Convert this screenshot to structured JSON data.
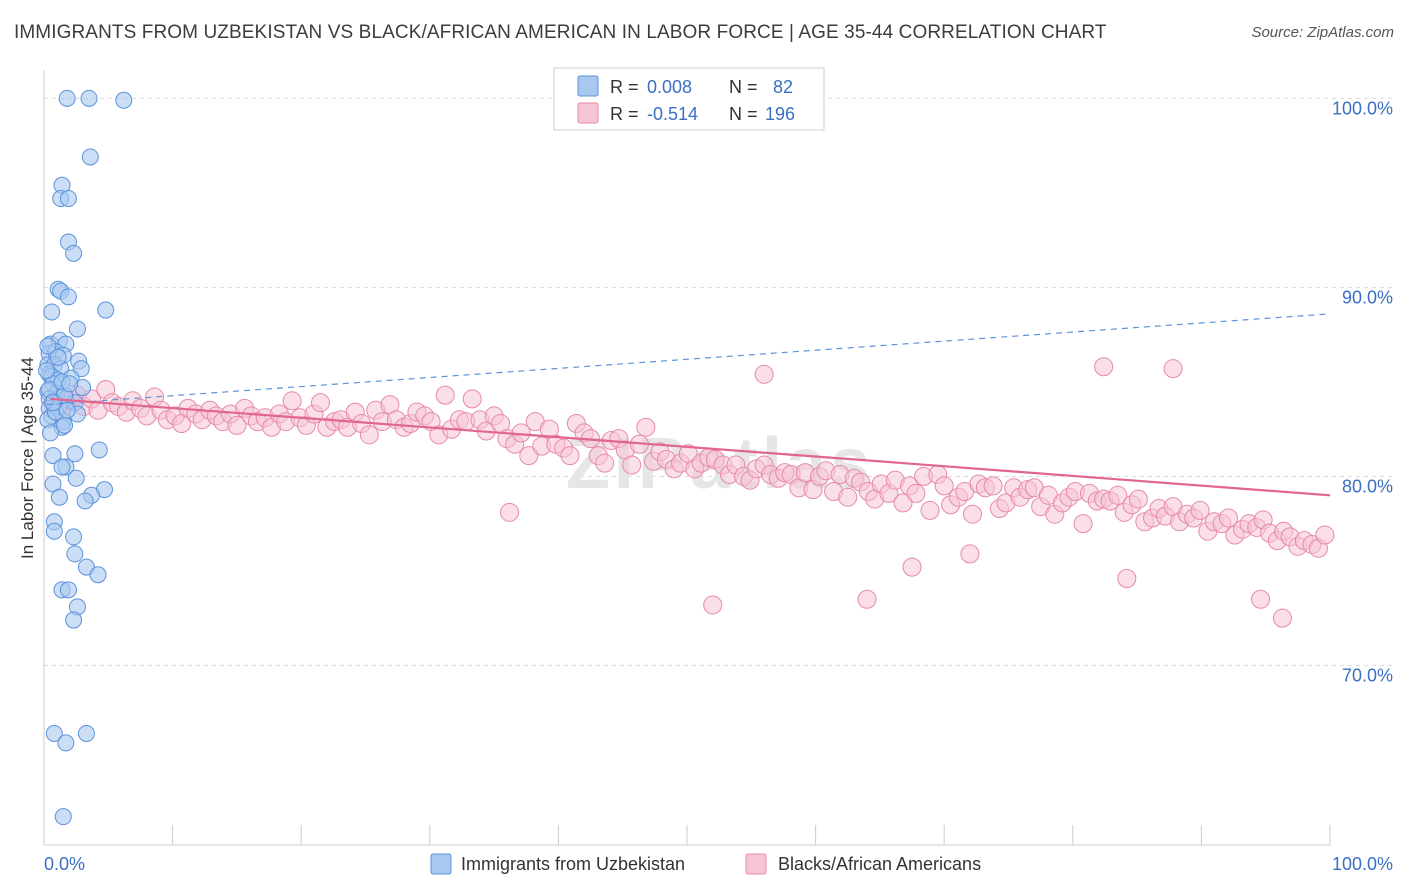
{
  "header": {
    "title": "IMMIGRANTS FROM UZBEKISTAN VS BLACK/AFRICAN AMERICAN IN LABOR FORCE | AGE 35-44 CORRELATION CHART",
    "source": "Source: ZipAtlas.com"
  },
  "colors": {
    "blue_fill": "#a9c8f0",
    "blue_stroke": "#5b93dc",
    "blue_line": "#5b93dc",
    "pink_fill": "#f6c5d4",
    "pink_stroke": "#e78aa8",
    "pink_line": "#e0668f",
    "value_text": "#3a6fc4",
    "grid": "#d9d9d9"
  },
  "watermark": "ZIPatlas",
  "legend_box": {
    "rows": [
      {
        "r_label": "R = ",
        "r_value": "0.008",
        "n_label": "N = ",
        "n_value": "82"
      },
      {
        "r_label": "R = ",
        "r_value": "-0.514",
        "n_label": "N = ",
        "n_value": "196"
      }
    ]
  },
  "bottom_legend": {
    "series1": "Immigrants from Uzbekistan",
    "series2": "Blacks/African Americans"
  },
  "chart_data": {
    "type": "scatter",
    "title": "IMMIGRANTS FROM UZBEKISTAN VS BLACK/AFRICAN AMERICAN IN LABOR FORCE | AGE 35-44 CORRELATION CHART",
    "ylabel": "In Labor Force | Age 35-44",
    "xlabel": "",
    "xlim": [
      0,
      100
    ],
    "ylim": [
      60.5,
      101.5
    ],
    "x_tick_labels": [
      "0.0%",
      "100.0%"
    ],
    "y_ticks": [
      70,
      80,
      90,
      100
    ],
    "y_tick_labels": [
      "70.0%",
      "80.0%",
      "90.0%",
      "100.0%"
    ],
    "grid": true,
    "legend_position": "top-center",
    "series": [
      {
        "name": "Immigrants from Uzbekistan",
        "R": 0.008,
        "N": 82,
        "trend": {
          "x": [
            0.2,
            100
          ],
          "y": [
            83.8,
            88.6
          ],
          "style": "dashed"
        },
        "points": [
          [
            1.8,
            100
          ],
          [
            3.5,
            100
          ],
          [
            6.2,
            99.9
          ],
          [
            3.6,
            96.9
          ],
          [
            1.4,
            95.4
          ],
          [
            1.3,
            94.7
          ],
          [
            1.9,
            94.7
          ],
          [
            1.9,
            92.4
          ],
          [
            2.3,
            91.8
          ],
          [
            1.1,
            89.9
          ],
          [
            1.3,
            89.8
          ],
          [
            1.9,
            89.5
          ],
          [
            0.6,
            88.7
          ],
          [
            4.8,
            88.8
          ],
          [
            2.6,
            87.8
          ],
          [
            0.5,
            87.0
          ],
          [
            1.2,
            87.2
          ],
          [
            1.7,
            87.0
          ],
          [
            0.4,
            86.5
          ],
          [
            0.9,
            86.6
          ],
          [
            1.5,
            86.4
          ],
          [
            2.7,
            86.1
          ],
          [
            0.3,
            85.9
          ],
          [
            0.8,
            85.9
          ],
          [
            1.3,
            85.7
          ],
          [
            2.9,
            85.7
          ],
          [
            0.4,
            85.4
          ],
          [
            0.6,
            85.3
          ],
          [
            1.1,
            85.1
          ],
          [
            0.7,
            84.9
          ],
          [
            0.3,
            84.5
          ],
          [
            1.0,
            84.4
          ],
          [
            0.4,
            84.1
          ],
          [
            0.8,
            84.0
          ],
          [
            1.7,
            84.1
          ],
          [
            2.4,
            83.9
          ],
          [
            0.4,
            83.6
          ],
          [
            1.2,
            83.7
          ],
          [
            0.6,
            83.2
          ],
          [
            0.3,
            83.0
          ],
          [
            2.6,
            83.3
          ],
          [
            1.5,
            82.9
          ],
          [
            1.4,
            82.6
          ],
          [
            1.6,
            82.7
          ],
          [
            4.3,
            81.4
          ],
          [
            0.7,
            81.1
          ],
          [
            2.4,
            81.2
          ],
          [
            1.7,
            80.5
          ],
          [
            1.4,
            80.5
          ],
          [
            2.5,
            79.9
          ],
          [
            0.7,
            79.6
          ],
          [
            4.7,
            79.3
          ],
          [
            3.7,
            79.0
          ],
          [
            1.2,
            78.9
          ],
          [
            3.2,
            78.7
          ],
          [
            0.8,
            77.6
          ],
          [
            0.8,
            77.1
          ],
          [
            2.3,
            76.8
          ],
          [
            2.4,
            75.9
          ],
          [
            3.3,
            75.2
          ],
          [
            4.2,
            74.8
          ],
          [
            1.4,
            74.0
          ],
          [
            1.9,
            74.0
          ],
          [
            2.6,
            73.1
          ],
          [
            2.3,
            72.4
          ],
          [
            0.8,
            66.4
          ],
          [
            3.3,
            66.4
          ],
          [
            1.7,
            65.9
          ],
          [
            1.5,
            62.0
          ],
          [
            0.4,
            84.6
          ],
          [
            0.9,
            83.4
          ],
          [
            1.6,
            84.3
          ],
          [
            0.2,
            85.6
          ],
          [
            2.1,
            85.2
          ],
          [
            1.1,
            86.3
          ],
          [
            0.5,
            82.3
          ],
          [
            3.0,
            84.7
          ],
          [
            1.8,
            83.5
          ],
          [
            0.3,
            86.9
          ],
          [
            1.4,
            85.0
          ],
          [
            0.7,
            83.9
          ],
          [
            2.0,
            84.9
          ]
        ]
      },
      {
        "name": "Blacks/African Americans",
        "R": -0.514,
        "N": 196,
        "trend": {
          "x": [
            0.5,
            100
          ],
          "y": [
            84.1,
            79.0
          ],
          "style": "solid"
        },
        "points": [
          [
            0.7,
            83.9
          ],
          [
            1.2,
            84.2
          ],
          [
            1.6,
            83.8
          ],
          [
            2.1,
            84.0
          ],
          [
            2.6,
            84.3
          ],
          [
            3.1,
            83.7
          ],
          [
            3.7,
            84.1
          ],
          [
            4.2,
            83.5
          ],
          [
            4.8,
            84.6
          ],
          [
            5.3,
            83.9
          ],
          [
            5.8,
            83.7
          ],
          [
            6.4,
            83.4
          ],
          [
            6.9,
            84.0
          ],
          [
            7.5,
            83.6
          ],
          [
            8.0,
            83.2
          ],
          [
            8.6,
            84.2
          ],
          [
            9.1,
            83.5
          ],
          [
            9.6,
            83.0
          ],
          [
            10.2,
            83.2
          ],
          [
            10.7,
            82.8
          ],
          [
            11.2,
            83.6
          ],
          [
            11.8,
            83.3
          ],
          [
            12.3,
            83.0
          ],
          [
            12.9,
            83.5
          ],
          [
            13.4,
            83.2
          ],
          [
            13.9,
            82.9
          ],
          [
            14.5,
            83.3
          ],
          [
            15.0,
            82.7
          ],
          [
            15.6,
            83.6
          ],
          [
            16.1,
            83.2
          ],
          [
            16.6,
            82.9
          ],
          [
            17.2,
            83.1
          ],
          [
            17.7,
            82.6
          ],
          [
            18.3,
            83.3
          ],
          [
            18.8,
            82.9
          ],
          [
            19.3,
            84.0
          ],
          [
            19.9,
            83.1
          ],
          [
            20.4,
            82.7
          ],
          [
            21.0,
            83.3
          ],
          [
            21.5,
            83.9
          ],
          [
            22.0,
            82.6
          ],
          [
            22.6,
            82.9
          ],
          [
            23.1,
            83.0
          ],
          [
            23.6,
            82.6
          ],
          [
            24.2,
            83.4
          ],
          [
            24.7,
            82.8
          ],
          [
            25.3,
            82.2
          ],
          [
            25.8,
            83.5
          ],
          [
            26.3,
            82.9
          ],
          [
            26.9,
            83.8
          ],
          [
            27.4,
            83.0
          ],
          [
            28.0,
            82.6
          ],
          [
            28.5,
            82.8
          ],
          [
            29.0,
            83.4
          ],
          [
            29.6,
            83.2
          ],
          [
            30.1,
            82.9
          ],
          [
            30.7,
            82.2
          ],
          [
            31.2,
            84.3
          ],
          [
            31.7,
            82.5
          ],
          [
            32.3,
            83.0
          ],
          [
            32.8,
            82.9
          ],
          [
            33.3,
            84.1
          ],
          [
            33.9,
            83.0
          ],
          [
            34.4,
            82.4
          ],
          [
            35.0,
            83.2
          ],
          [
            35.5,
            82.8
          ],
          [
            36.0,
            82.0
          ],
          [
            36.6,
            81.7
          ],
          [
            37.1,
            82.3
          ],
          [
            37.7,
            81.1
          ],
          [
            38.2,
            82.9
          ],
          [
            38.7,
            81.6
          ],
          [
            39.3,
            82.5
          ],
          [
            39.8,
            81.7
          ],
          [
            40.4,
            81.5
          ],
          [
            40.9,
            81.1
          ],
          [
            41.4,
            82.8
          ],
          [
            42.0,
            82.3
          ],
          [
            42.5,
            82.0
          ],
          [
            43.1,
            81.1
          ],
          [
            43.6,
            80.7
          ],
          [
            44.1,
            81.9
          ],
          [
            44.7,
            82.0
          ],
          [
            45.2,
            81.4
          ],
          [
            45.7,
            80.6
          ],
          [
            46.3,
            81.7
          ],
          [
            46.8,
            82.6
          ],
          [
            47.4,
            80.8
          ],
          [
            47.9,
            81.3
          ],
          [
            48.4,
            80.9
          ],
          [
            49.0,
            80.4
          ],
          [
            49.5,
            80.7
          ],
          [
            50.1,
            81.2
          ],
          [
            50.6,
            80.4
          ],
          [
            51.1,
            80.7
          ],
          [
            51.7,
            81.0
          ],
          [
            52.2,
            80.9
          ],
          [
            52.8,
            80.6
          ],
          [
            53.3,
            80.1
          ],
          [
            53.8,
            80.6
          ],
          [
            54.4,
            80.0
          ],
          [
            54.9,
            79.8
          ],
          [
            55.4,
            80.4
          ],
          [
            56.0,
            80.6
          ],
          [
            56.5,
            80.1
          ],
          [
            57.1,
            79.9
          ],
          [
            57.6,
            80.2
          ],
          [
            58.1,
            80.1
          ],
          [
            58.7,
            79.4
          ],
          [
            59.2,
            80.2
          ],
          [
            59.8,
            79.3
          ],
          [
            60.3,
            80.0
          ],
          [
            60.8,
            80.3
          ],
          [
            61.4,
            79.2
          ],
          [
            61.9,
            80.1
          ],
          [
            62.5,
            78.9
          ],
          [
            63.0,
            79.9
          ],
          [
            63.5,
            79.7
          ],
          [
            64.1,
            79.2
          ],
          [
            64.6,
            78.8
          ],
          [
            65.1,
            79.6
          ],
          [
            65.7,
            79.1
          ],
          [
            66.2,
            79.8
          ],
          [
            66.8,
            78.6
          ],
          [
            67.3,
            79.5
          ],
          [
            67.8,
            79.1
          ],
          [
            68.4,
            80.0
          ],
          [
            68.9,
            78.2
          ],
          [
            69.5,
            80.1
          ],
          [
            70.0,
            79.5
          ],
          [
            70.5,
            78.5
          ],
          [
            71.1,
            78.9
          ],
          [
            71.6,
            79.2
          ],
          [
            72.2,
            78.0
          ],
          [
            72.7,
            79.6
          ],
          [
            73.2,
            79.4
          ],
          [
            73.8,
            79.5
          ],
          [
            74.3,
            78.3
          ],
          [
            74.8,
            78.6
          ],
          [
            75.4,
            79.4
          ],
          [
            75.9,
            78.9
          ],
          [
            76.5,
            79.3
          ],
          [
            77.0,
            79.4
          ],
          [
            77.5,
            78.4
          ],
          [
            78.1,
            79.0
          ],
          [
            78.6,
            78.0
          ],
          [
            79.2,
            78.6
          ],
          [
            79.7,
            78.9
          ],
          [
            80.2,
            79.2
          ],
          [
            80.8,
            77.5
          ],
          [
            81.3,
            79.1
          ],
          [
            81.9,
            78.7
          ],
          [
            82.4,
            78.8
          ],
          [
            82.9,
            78.7
          ],
          [
            83.5,
            79.0
          ],
          [
            84.0,
            78.1
          ],
          [
            84.6,
            78.5
          ],
          [
            85.1,
            78.8
          ],
          [
            85.6,
            77.6
          ],
          [
            86.2,
            77.8
          ],
          [
            86.7,
            78.3
          ],
          [
            87.2,
            77.9
          ],
          [
            87.8,
            78.4
          ],
          [
            88.3,
            77.6
          ],
          [
            88.9,
            78.0
          ],
          [
            89.4,
            77.8
          ],
          [
            89.9,
            78.2
          ],
          [
            90.5,
            77.1
          ],
          [
            91.0,
            77.6
          ],
          [
            91.6,
            77.5
          ],
          [
            92.1,
            77.8
          ],
          [
            92.6,
            76.9
          ],
          [
            93.2,
            77.2
          ],
          [
            93.7,
            77.5
          ],
          [
            94.3,
            77.3
          ],
          [
            94.8,
            77.7
          ],
          [
            95.3,
            77.0
          ],
          [
            95.9,
            76.6
          ],
          [
            96.4,
            77.1
          ],
          [
            96.9,
            76.8
          ],
          [
            97.5,
            76.3
          ],
          [
            98.0,
            76.6
          ],
          [
            98.6,
            76.4
          ],
          [
            99.1,
            76.2
          ],
          [
            99.6,
            76.9
          ],
          [
            36.2,
            78.1
          ],
          [
            64.0,
            73.5
          ],
          [
            67.5,
            75.2
          ],
          [
            52.0,
            73.2
          ],
          [
            72.0,
            75.9
          ],
          [
            84.2,
            74.6
          ],
          [
            94.6,
            73.5
          ],
          [
            96.3,
            72.5
          ],
          [
            82.4,
            85.8
          ],
          [
            87.8,
            85.7
          ],
          [
            56.0,
            85.4
          ]
        ]
      }
    ]
  }
}
